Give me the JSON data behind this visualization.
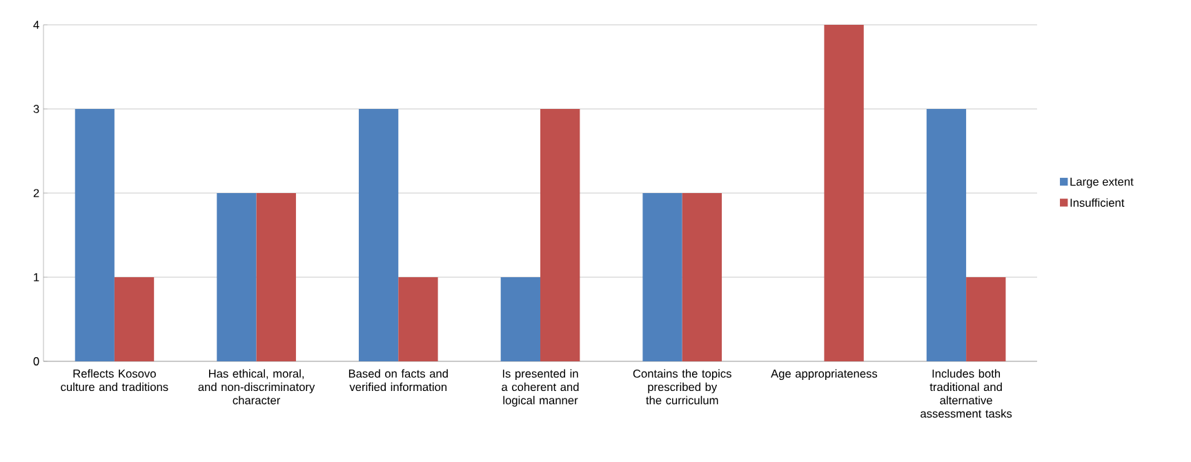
{
  "chart_data": {
    "type": "bar",
    "categories": [
      "Reflects Kosovo culture and traditions",
      "Has ethical, moral, and non-discriminatory character",
      "Based on facts and verified information",
      "Is presented in a coherent and logical manner",
      "Contains the topics prescribed by the curriculum",
      "Age appropriateness",
      "Includes both traditional and alternative assessment tasks"
    ],
    "series": [
      {
        "name": "Large extent",
        "color": "#4f81bd",
        "values": [
          3,
          2,
          3,
          1,
          2,
          0,
          3
        ]
      },
      {
        "name": "Insufficient",
        "color": "#c0504d",
        "values": [
          1,
          2,
          1,
          3,
          2,
          4,
          1
        ]
      }
    ],
    "ylim": [
      0,
      4
    ],
    "yticks": [
      0,
      1,
      2,
      3,
      4
    ],
    "grid": "y",
    "legend": "right"
  }
}
